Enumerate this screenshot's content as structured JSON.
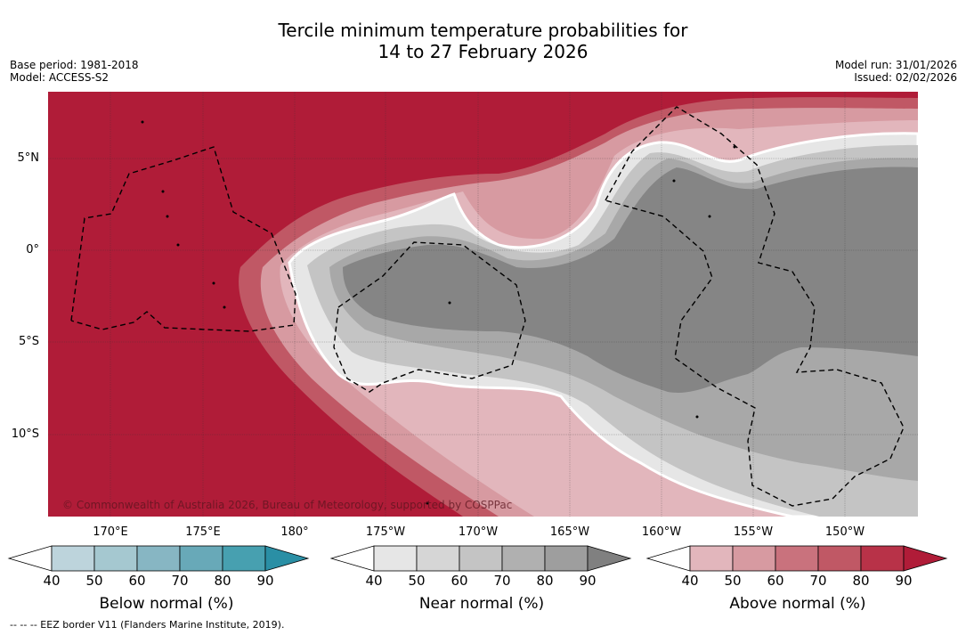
{
  "title_line1": "Tercile minimum temperature probabilities for",
  "title_line2": "14 to 27 February 2026",
  "meta_left": {
    "base_period": "Base period: 1981-2018",
    "model": "Model: ACCESS-S2"
  },
  "meta_right": {
    "model_run": "Model run: 31/01/2026",
    "issued": "Issued: 02/02/2026"
  },
  "lat_labels": [
    "5°N",
    "0°",
    "5°S",
    "10°S"
  ],
  "lon_labels": [
    "170°E",
    "175°E",
    "180°",
    "175°W",
    "170°W",
    "165°W",
    "160°W",
    "155°W",
    "150°W"
  ],
  "copyright": "© Commonwealth of Australia 2026, Bureau of Meteorology, supported by COSPPac",
  "colorbars": [
    {
      "title": "Below normal (%)",
      "ticks": [
        "40",
        "50",
        "60",
        "70",
        "80",
        "90"
      ],
      "colors": [
        "#bdd4dc",
        "#a5c8d0",
        "#87b6c3",
        "#68a9b8",
        "#47a0b0",
        "#2a8fa5"
      ]
    },
    {
      "title": "Near normal (%)",
      "ticks": [
        "40",
        "50",
        "60",
        "70",
        "80",
        "90"
      ],
      "colors": [
        "#e6e6e6",
        "#d6d6d6",
        "#c4c4c4",
        "#b0b0b0",
        "#9e9e9e",
        "#808080"
      ]
    },
    {
      "title": "Above normal (%)",
      "ticks": [
        "40",
        "50",
        "60",
        "70",
        "80",
        "90"
      ],
      "colors": [
        "#e2b6bc",
        "#d79aa1",
        "#c9727d",
        "#c05865",
        "#b83248",
        "#b01c38"
      ]
    }
  ],
  "footnote": "-- -- -- EEZ border V11 (Flanders Marine Institute, 2019).",
  "colors": {
    "above_max": "#b01c38",
    "near_max": "#858585",
    "near_mid": "#a8a8a8",
    "near_low": "#cfcfcf"
  }
}
